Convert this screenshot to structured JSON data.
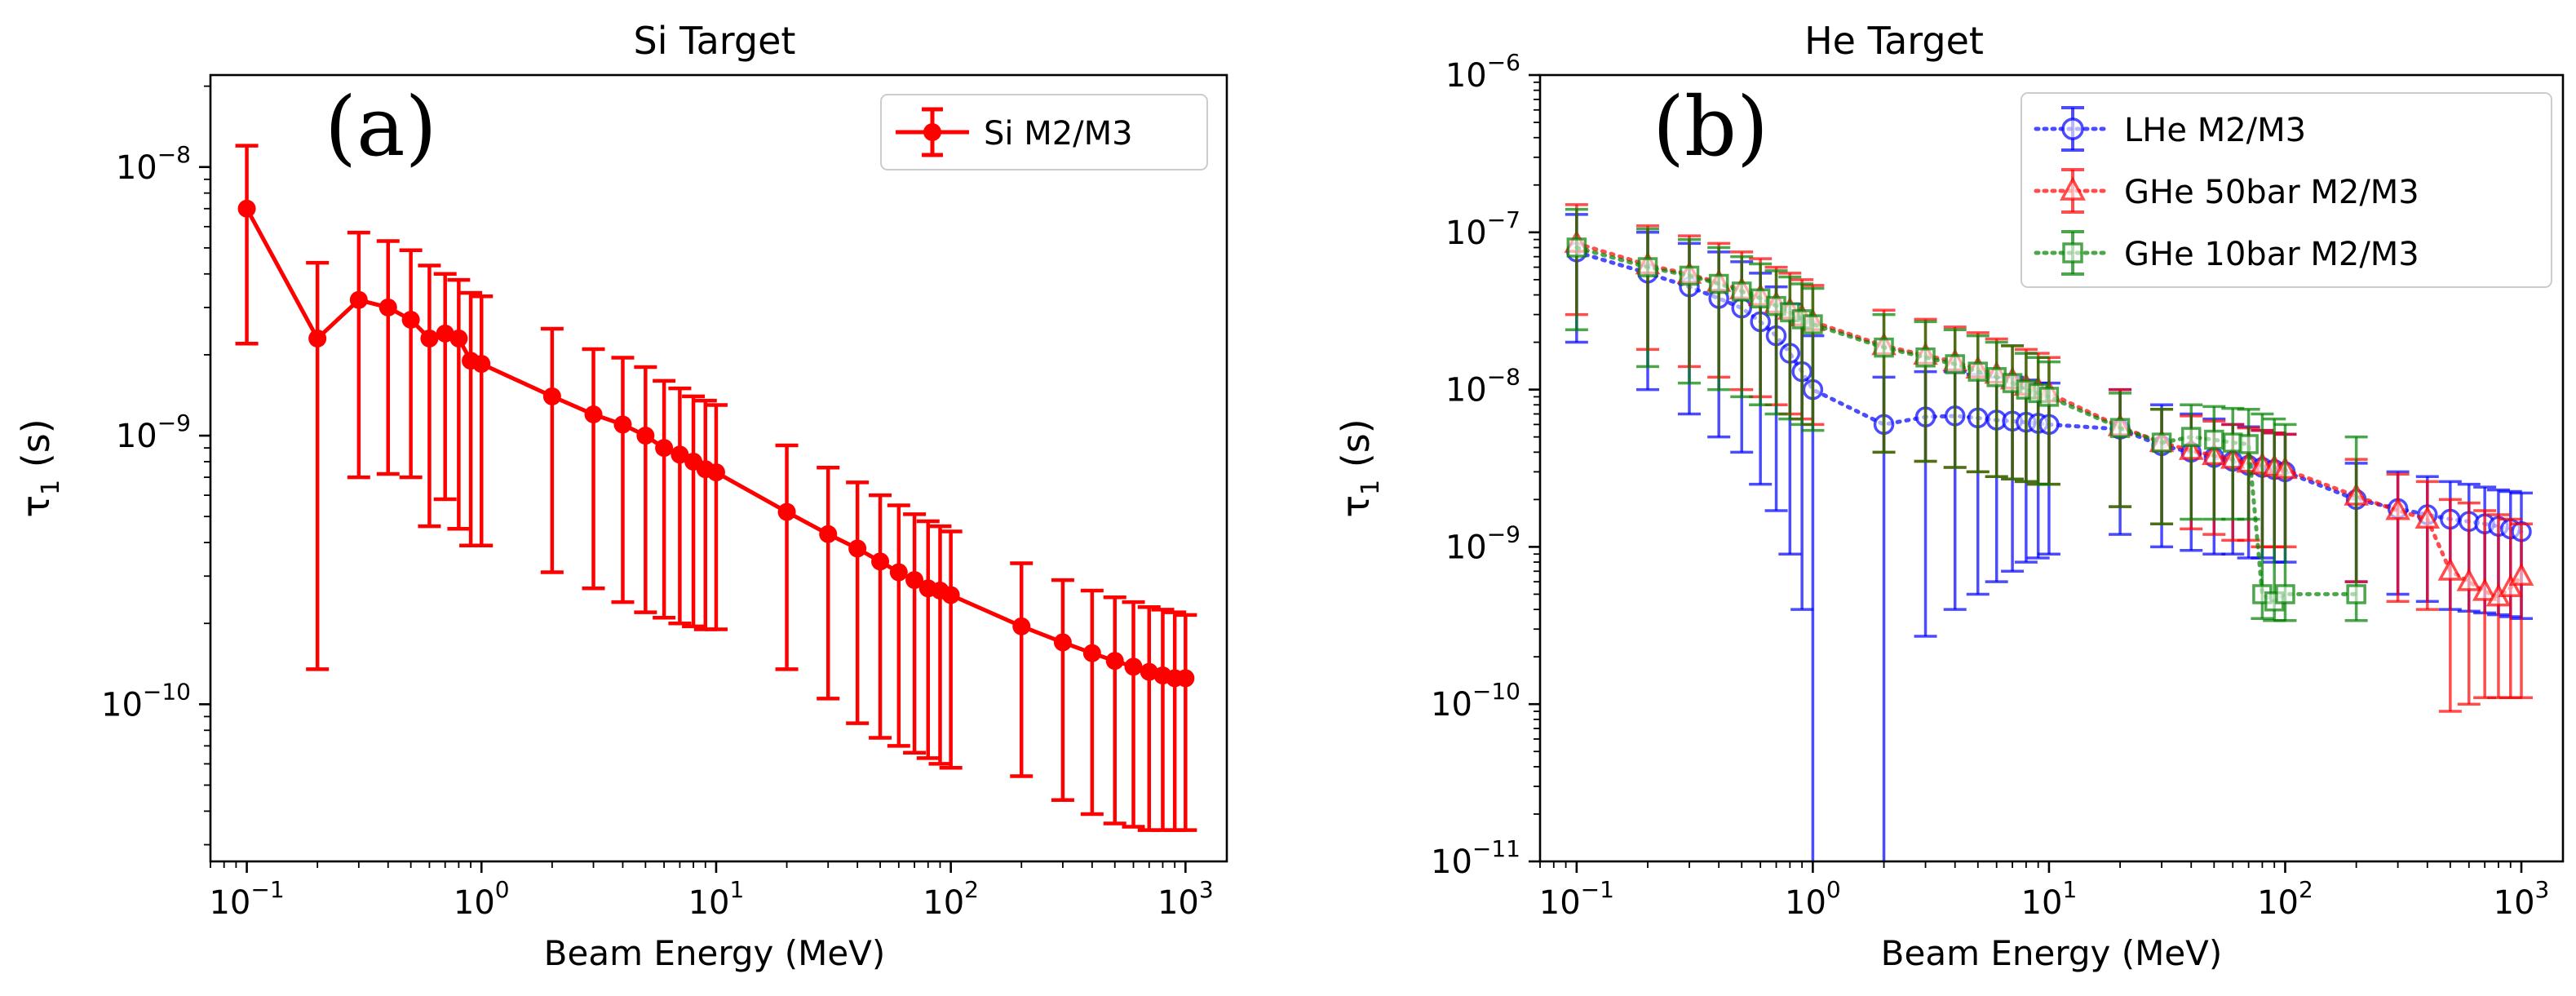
{
  "chart_data": [
    {
      "type": "line",
      "title": "Si Target",
      "panel_label": "(a)",
      "xlabel": "Beam Energy (MeV)",
      "ylabel_main": "τ",
      "ylabel_sub": "1",
      "ylabel_unit": " (s)",
      "xscale": "log",
      "yscale": "log",
      "xlim": [
        0.07,
        1500
      ],
      "ylim": [
        2.6e-11,
        2.2e-08
      ],
      "x_ticks": [
        {
          "value": 0.1,
          "base": "10",
          "exp": "−1"
        },
        {
          "value": 1,
          "base": "10",
          "exp": "0"
        },
        {
          "value": 10,
          "base": "10",
          "exp": "1"
        },
        {
          "value": 100,
          "base": "10",
          "exp": "2"
        },
        {
          "value": 1000,
          "base": "10",
          "exp": "3"
        }
      ],
      "y_ticks": [
        {
          "value": 1e-10,
          "base": "10",
          "exp": "−10"
        },
        {
          "value": 1e-09,
          "base": "10",
          "exp": "−9"
        },
        {
          "value": 1e-08,
          "base": "10",
          "exp": "−8"
        }
      ],
      "legend_position": "top-right",
      "series": [
        {
          "name": "Si M2/M3",
          "color": "#ff0000",
          "marker": "circle-filled",
          "linestyle": "solid",
          "x": [
            0.1,
            0.2,
            0.3,
            0.4,
            0.5,
            0.6,
            0.7,
            0.8,
            0.9,
            1,
            2,
            3,
            4,
            5,
            6,
            7,
            8,
            9,
            10,
            20,
            30,
            40,
            50,
            60,
            70,
            80,
            90,
            100,
            200,
            300,
            400,
            500,
            600,
            700,
            800,
            900,
            1000
          ],
          "y": [
            7e-09,
            2.3e-09,
            3.2e-09,
            3e-09,
            2.7e-09,
            2.3e-09,
            2.4e-09,
            2.3e-09,
            1.9e-09,
            1.85e-09,
            1.4e-09,
            1.2e-09,
            1.1e-09,
            1e-09,
            9e-10,
            8.5e-10,
            8e-10,
            7.5e-10,
            7.3e-10,
            5.2e-10,
            4.3e-10,
            3.8e-10,
            3.4e-10,
            3.1e-10,
            2.9e-10,
            2.7e-10,
            2.65e-10,
            2.55e-10,
            1.95e-10,
            1.7e-10,
            1.55e-10,
            1.45e-10,
            1.38e-10,
            1.32e-10,
            1.28e-10,
            1.25e-10,
            1.25e-10
          ],
          "y_low": [
            2.2e-09,
            1.35e-10,
            7e-10,
            7.2e-10,
            7e-10,
            4.6e-10,
            5.8e-10,
            4.5e-10,
            3.9e-10,
            3.9e-10,
            3.1e-10,
            2.7e-10,
            2.4e-10,
            2.2e-10,
            2.1e-10,
            2e-10,
            1.95e-10,
            1.9e-10,
            1.9e-10,
            1.35e-10,
            1.05e-10,
            8.5e-11,
            7.5e-11,
            7e-11,
            6.6e-11,
            6.3e-11,
            6e-11,
            5.8e-11,
            5.4e-11,
            4.4e-11,
            3.9e-11,
            3.6e-11,
            3.5e-11,
            3.4e-11,
            3.4e-11,
            3.4e-11,
            3.4e-11
          ],
          "y_high": [
            1.2e-08,
            4.4e-09,
            5.7e-09,
            5.3e-09,
            4.9e-09,
            4.3e-09,
            4e-09,
            3.8e-09,
            3.4e-09,
            3.3e-09,
            2.5e-09,
            2.1e-09,
            1.95e-09,
            1.8e-09,
            1.6e-09,
            1.5e-09,
            1.4e-09,
            1.35e-09,
            1.3e-09,
            9.2e-10,
            7.6e-10,
            6.7e-10,
            6e-10,
            5.5e-10,
            5.1e-10,
            4.8e-10,
            4.6e-10,
            4.4e-10,
            3.35e-10,
            2.9e-10,
            2.65e-10,
            2.5e-10,
            2.4e-10,
            2.3e-10,
            2.25e-10,
            2.2e-10,
            2.15e-10
          ]
        }
      ]
    },
    {
      "type": "line",
      "title": "He Target",
      "panel_label": "(b)",
      "xlabel": "Beam Energy (MeV)",
      "ylabel_main": "τ",
      "ylabel_sub": "1",
      "ylabel_unit": " (s)",
      "xscale": "log",
      "yscale": "log",
      "xlim": [
        0.07,
        1500
      ],
      "ylim": [
        1e-11,
        1e-06
      ],
      "x_ticks": [
        {
          "value": 0.1,
          "base": "10",
          "exp": "−1"
        },
        {
          "value": 1,
          "base": "10",
          "exp": "0"
        },
        {
          "value": 10,
          "base": "10",
          "exp": "1"
        },
        {
          "value": 100,
          "base": "10",
          "exp": "2"
        },
        {
          "value": 1000,
          "base": "10",
          "exp": "3"
        }
      ],
      "y_ticks": [
        {
          "value": 1e-11,
          "base": "10",
          "exp": "−11"
        },
        {
          "value": 1e-10,
          "base": "10",
          "exp": "−10"
        },
        {
          "value": 1e-09,
          "base": "10",
          "exp": "−9"
        },
        {
          "value": 1e-08,
          "base": "10",
          "exp": "−8"
        },
        {
          "value": 1e-07,
          "base": "10",
          "exp": "−7"
        },
        {
          "value": 1e-06,
          "base": "10",
          "exp": "−6"
        }
      ],
      "legend_position": "top-right",
      "series": [
        {
          "name": "LHe M2/M3",
          "color": "#0000ff",
          "marker": "circle-open",
          "linestyle": "dotted",
          "x": [
            0.1,
            0.2,
            0.3,
            0.4,
            0.5,
            0.6,
            0.7,
            0.8,
            0.9,
            1,
            2,
            3,
            4,
            5,
            6,
            7,
            8,
            9,
            10,
            20,
            30,
            40,
            50,
            60,
            70,
            80,
            90,
            100,
            200,
            300,
            400,
            500,
            600,
            700,
            800,
            900,
            1000
          ],
          "y": [
            7.5e-08,
            5.5e-08,
            4.5e-08,
            3.8e-08,
            3.3e-08,
            2.7e-08,
            2.2e-08,
            1.7e-08,
            1.3e-08,
            1e-08,
            6e-09,
            6.7e-09,
            6.8e-09,
            6.6e-09,
            6.4e-09,
            6.3e-09,
            6.2e-09,
            6.1e-09,
            6e-09,
            5.6e-09,
            4.4e-09,
            4e-09,
            3.7e-09,
            3.5e-09,
            3.3e-09,
            3.2e-09,
            3.1e-09,
            3e-09,
            2e-09,
            1.75e-09,
            1.6e-09,
            1.5e-09,
            1.45e-09,
            1.4e-09,
            1.35e-09,
            1.3e-09,
            1.25e-09
          ],
          "y_low": [
            2e-08,
            1e-08,
            7e-09,
            5e-09,
            4e-09,
            2.5e-09,
            1.7e-09,
            9e-10,
            4e-10,
            1e-11,
            1e-11,
            2.7e-10,
            4e-10,
            5e-10,
            6e-10,
            7e-10,
            8e-10,
            8.5e-10,
            9e-10,
            1.2e-09,
            1e-09,
            9.5e-10,
            9e-10,
            9e-10,
            8.5e-10,
            8.5e-10,
            8e-10,
            8e-10,
            6e-10,
            5e-10,
            4.5e-10,
            4e-10,
            3.9e-10,
            3.8e-10,
            3.7e-10,
            3.6e-10,
            3.5e-10
          ],
          "y_high": [
            1.3e-07,
            1e-07,
            8.5e-08,
            7.5e-08,
            6.5e-08,
            5.5e-08,
            4.5e-08,
            3.5e-08,
            2.8e-08,
            2.2e-08,
            1.2e-08,
            1.3e-08,
            1.3e-08,
            1.25e-08,
            1.2e-08,
            1.2e-08,
            1.15e-08,
            1.1e-08,
            1.1e-08,
            1e-08,
            8e-09,
            7e-09,
            6.5e-09,
            6e-09,
            5.8e-09,
            5.5e-09,
            5.3e-09,
            5.2e-09,
            3.4e-09,
            3e-09,
            2.8e-09,
            2.6e-09,
            2.5e-09,
            2.4e-09,
            2.3e-09,
            2.25e-09,
            2.2e-09
          ]
        },
        {
          "name": "GHe 50bar M2/M3",
          "color": "#ff0000",
          "marker": "triangle-open",
          "linestyle": "dotted",
          "x": [
            0.1,
            0.2,
            0.3,
            0.4,
            0.5,
            0.6,
            0.7,
            0.8,
            0.9,
            1,
            2,
            3,
            4,
            5,
            6,
            7,
            8,
            9,
            10,
            20,
            30,
            40,
            50,
            60,
            70,
            80,
            90,
            100,
            200,
            300,
            400,
            500,
            600,
            700,
            800,
            900,
            1000
          ],
          "y": [
            8.5e-08,
            6.2e-08,
            5.4e-08,
            4.8e-08,
            4.3e-08,
            3.9e-08,
            3.5e-08,
            3.2e-08,
            2.9e-08,
            2.7e-08,
            1.9e-08,
            1.65e-08,
            1.5e-08,
            1.35e-08,
            1.25e-08,
            1.15e-08,
            1.05e-08,
            1e-08,
            9.5e-09,
            5.8e-09,
            4.6e-09,
            4.1e-09,
            3.8e-09,
            3.6e-09,
            3.4e-09,
            3.3e-09,
            3.2e-09,
            3.1e-09,
            2.1e-09,
            1.7e-09,
            1.5e-09,
            7e-10,
            6e-10,
            5.2e-10,
            4.8e-10,
            5.5e-10,
            6.5e-10
          ],
          "y_low": [
            3e-08,
            1.8e-08,
            1.4e-08,
            1.2e-08,
            1e-08,
            9e-09,
            8e-09,
            7e-09,
            6.5e-09,
            6e-09,
            4e-09,
            3.5e-09,
            3.2e-09,
            3e-09,
            2.8e-09,
            2.7e-09,
            2.6e-09,
            2.5e-09,
            2.5e-09,
            1.8e-09,
            1.4e-09,
            1.3e-09,
            1.2e-09,
            1.1e-09,
            1.1e-09,
            1e-09,
            1e-09,
            1e-09,
            6e-10,
            4.5e-10,
            4e-10,
            9e-11,
            1e-10,
            1.1e-10,
            1.1e-10,
            1.1e-10,
            1.1e-10
          ],
          "y_high": [
            1.5e-07,
            1.1e-07,
            9.5e-08,
            8.5e-08,
            7.5e-08,
            6.8e-08,
            6e-08,
            5.5e-08,
            5e-08,
            4.6e-08,
            3.2e-08,
            2.8e-08,
            2.5e-08,
            2.3e-08,
            2.1e-08,
            1.9e-08,
            1.8e-08,
            1.7e-08,
            1.6e-08,
            1e-08,
            7.5e-09,
            6.8e-09,
            6.3e-09,
            6e-09,
            5.7e-09,
            5.5e-09,
            5.3e-09,
            5.2e-09,
            3.6e-09,
            2.9e-09,
            2.6e-09,
            2e-09,
            1.9e-09,
            1.7e-09,
            1.6e-09,
            1.5e-09,
            1.4e-09
          ]
        },
        {
          "name": "GHe 10bar M2/M3",
          "color": "#008000",
          "marker": "square-open",
          "linestyle": "dotted",
          "x": [
            0.1,
            0.2,
            0.3,
            0.4,
            0.5,
            0.6,
            0.7,
            0.8,
            0.9,
            1,
            2,
            3,
            4,
            5,
            6,
            7,
            8,
            9,
            10,
            20,
            30,
            40,
            50,
            60,
            70,
            80,
            90,
            100,
            200
          ],
          "y": [
            8e-08,
            6e-08,
            5.3e-08,
            4.7e-08,
            4.2e-08,
            3.8e-08,
            3.4e-08,
            3.1e-08,
            2.8e-08,
            2.6e-08,
            1.85e-08,
            1.6e-08,
            1.45e-08,
            1.3e-08,
            1.2e-08,
            1.1e-08,
            1e-08,
            9.5e-09,
            9e-09,
            5.7e-09,
            4.6e-09,
            5e-09,
            4.8e-09,
            4.6e-09,
            4.5e-09,
            5e-10,
            4.5e-10,
            5e-10,
            5e-10
          ],
          "y_low": [
            2.4e-08,
            1.4e-08,
            1.1e-08,
            1e-08,
            9e-09,
            8e-09,
            7e-09,
            6.5e-09,
            6e-09,
            5.5e-09,
            4e-09,
            3.5e-09,
            3.2e-09,
            3e-09,
            2.8e-09,
            2.7e-09,
            2.6e-09,
            2.5e-09,
            2.5e-09,
            1.8e-09,
            1.4e-09,
            1.5e-09,
            1.5e-09,
            1.5e-09,
            1.5e-09,
            3.5e-10,
            3.4e-10,
            3.4e-10,
            3.4e-10
          ],
          "y_high": [
            1.4e-07,
            1.05e-07,
            9e-08,
            8e-08,
            7e-08,
            6.3e-08,
            5.7e-08,
            5.2e-08,
            4.7e-08,
            4.4e-08,
            3e-08,
            2.7e-08,
            2.4e-08,
            2.2e-08,
            2e-08,
            1.9e-08,
            1.7e-08,
            1.6e-08,
            1.5e-08,
            9.5e-09,
            7.5e-09,
            8e-09,
            7.8e-09,
            7.6e-09,
            7.5e-09,
            7e-09,
            6.5e-09,
            6e-09,
            5e-09
          ]
        }
      ]
    }
  ]
}
